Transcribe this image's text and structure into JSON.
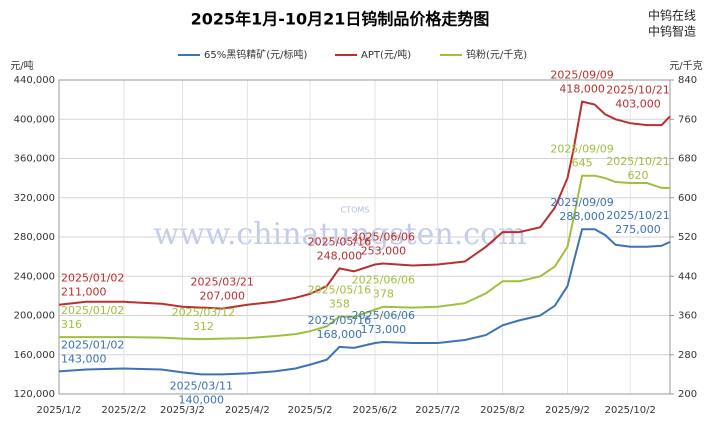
{
  "brand": [
    "中钨在线",
    "中钨智造"
  ],
  "watermark": [
    "www.chinatungsten.com",
    "CTOMS"
  ],
  "chart_data": {
    "type": "line",
    "title": "2025年1月-10月21日钨制品价格走势图",
    "y_label": "元/吨",
    "y2_label": "元/千克",
    "legend": "top",
    "grid": true,
    "x": [
      "2025/01/02",
      "2025/01/15",
      "2025/02/02",
      "2025/02/20",
      "2025/03/02",
      "2025/03/11",
      "2025/03/12",
      "2025/03/21",
      "2025/04/02",
      "2025/04/15",
      "2025/04/25",
      "2025/05/02",
      "2025/05/10",
      "2025/05/16",
      "2025/05/23",
      "2025/06/02",
      "2025/06/06",
      "2025/06/20",
      "2025/07/02",
      "2025/07/15",
      "2025/07/25",
      "2025/08/02",
      "2025/08/10",
      "2025/08/20",
      "2025/08/27",
      "2025/09/02",
      "2025/09/05",
      "2025/09/09",
      "2025/09/15",
      "2025/09/20",
      "2025/09/25",
      "2025/10/02",
      "2025/10/10",
      "2025/10/17",
      "2025/10/21"
    ],
    "xlim": [
      "2025/1/2",
      "2025/10/21"
    ],
    "xticks": [
      "2025/1/2",
      "2025/2/2",
      "2025/3/2",
      "2025/4/2",
      "2025/5/2",
      "2025/6/2",
      "2025/7/2",
      "2025/8/2",
      "2025/9/2",
      "2025/10/2"
    ],
    "ylim": [
      120000,
      440000
    ],
    "yticks": [
      {
        "value": 120000,
        "label": "120,000"
      },
      {
        "value": 160000,
        "label": "160,000"
      },
      {
        "value": 200000,
        "label": "200,000"
      },
      {
        "value": 240000,
        "label": "240,000"
      },
      {
        "value": 280000,
        "label": "280,000"
      },
      {
        "value": 320000,
        "label": "320,000"
      },
      {
        "value": 360000,
        "label": "360,000"
      },
      {
        "value": 400000,
        "label": "400,000"
      },
      {
        "value": 440000,
        "label": "440,000"
      }
    ],
    "y2lim": [
      200,
      840
    ],
    "y2ticks": [
      200,
      280,
      360,
      440,
      520,
      600,
      680,
      760,
      840
    ],
    "series": [
      {
        "name": "65%黑钨精矿(元/标吨)",
        "color": "#3d72b4",
        "axis": "y",
        "values": [
          143000,
          145000,
          146000,
          145000,
          142000,
          140000,
          140000,
          140000,
          141000,
          143000,
          146000,
          150000,
          155000,
          168000,
          167000,
          172000,
          173000,
          172000,
          172000,
          175000,
          180000,
          190000,
          195000,
          200000,
          210000,
          230000,
          255000,
          288000,
          288000,
          282000,
          272000,
          270000,
          270000,
          271000,
          275000
        ],
        "annotations": [
          {
            "x": "2025/01/02",
            "value": 143000,
            "label": "143,000"
          },
          {
            "x": "2025/03/11",
            "value": 140000,
            "label": "140,000"
          },
          {
            "x": "2025/05/16",
            "value": 168000,
            "label": "168,000"
          },
          {
            "x": "2025/06/06",
            "value": 173000,
            "label": "173,000"
          },
          {
            "x": "2025/09/09",
            "value": 288000,
            "label": "288,000"
          },
          {
            "x": "2025/10/21",
            "value": 275000,
            "label": "275,000"
          }
        ]
      },
      {
        "name": "APT(元/吨)",
        "color": "#b8302f",
        "axis": "y",
        "values": [
          211000,
          214000,
          214000,
          212000,
          209000,
          208000,
          208000,
          207000,
          211000,
          214000,
          218000,
          222000,
          230000,
          248000,
          245000,
          252000,
          253000,
          251000,
          252000,
          255000,
          270000,
          285000,
          285000,
          290000,
          310000,
          340000,
          370000,
          418000,
          415000,
          405000,
          400000,
          396000,
          394000,
          394000,
          403000
        ],
        "annotations": [
          {
            "x": "2025/01/02",
            "value": 211000,
            "label": "211,000"
          },
          {
            "x": "2025/03/21",
            "value": 207000,
            "label": "207,000"
          },
          {
            "x": "2025/05/16",
            "value": 248000,
            "label": "248,000"
          },
          {
            "x": "2025/06/06",
            "value": 253000,
            "label": "253,000"
          },
          {
            "x": "2025/09/09",
            "value": 418000,
            "label": "418,000"
          },
          {
            "x": "2025/10/21",
            "value": 403000,
            "label": "403,000"
          }
        ]
      },
      {
        "name": "钨粉(元/千克)",
        "color": "#9fbf3e",
        "axis": "y2",
        "values": [
          316,
          316,
          316,
          315,
          313,
          312,
          312,
          313,
          314,
          318,
          322,
          328,
          338,
          358,
          357,
          372,
          378,
          376,
          378,
          385,
          405,
          430,
          430,
          440,
          460,
          500,
          560,
          645,
          645,
          640,
          632,
          630,
          630,
          620,
          620
        ],
        "annotations": [
          {
            "x": "2025/01/02",
            "value": 316,
            "label": "316"
          },
          {
            "x": "2025/03/12",
            "value": 312,
            "label": "312"
          },
          {
            "x": "2025/05/16",
            "value": 358,
            "label": "358"
          },
          {
            "x": "2025/06/06",
            "value": 378,
            "label": "378"
          },
          {
            "x": "2025/09/09",
            "value": 645,
            "label": "645"
          },
          {
            "x": "2025/10/21",
            "value": 620,
            "label": "620"
          }
        ]
      }
    ]
  }
}
